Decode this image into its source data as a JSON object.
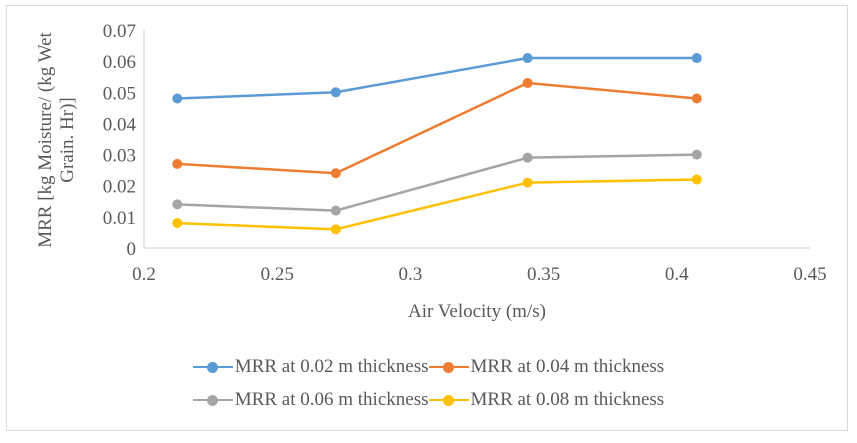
{
  "chart_data": {
    "type": "line",
    "title": "",
    "xlabel": "Air Velocity (m/s)",
    "ylabel": "MRR [kg Moisture/ (kg Wet Grain. Hr)]",
    "ylabel_lines": [
      "MRR [kg Moisture/ (kg Wet",
      "Grain. Hr)]"
    ],
    "xlim": [
      0.2,
      0.45
    ],
    "ylim": [
      0,
      0.07
    ],
    "x_ticks": [
      "0.2",
      "0.25",
      "0.3",
      "0.35",
      "0.4",
      "0.45"
    ],
    "x_tick_values": [
      0.2,
      0.25,
      0.3,
      0.35,
      0.4,
      0.45
    ],
    "y_ticks": [
      "0",
      "0.01",
      "0.02",
      "0.03",
      "0.04",
      "0.05",
      "0.06",
      "0.07"
    ],
    "y_tick_values": [
      0,
      0.01,
      0.02,
      0.03,
      0.04,
      0.05,
      0.06,
      0.07
    ],
    "grid": false,
    "legend_position": "bottom",
    "x": [
      0.2125,
      0.272,
      0.344,
      0.4075
    ],
    "series": [
      {
        "name": "MRR at 0.02 m thickness",
        "color": "#5b9bd5",
        "values": [
          0.048,
          0.05,
          0.061,
          0.061
        ]
      },
      {
        "name": "MRR at 0.04 m thickness",
        "color": "#ed7d31",
        "values": [
          0.027,
          0.024,
          0.053,
          0.048
        ]
      },
      {
        "name": "MRR at 0.06 m thickness",
        "color": "#a5a5a5",
        "values": [
          0.014,
          0.012,
          0.029,
          0.03
        ]
      },
      {
        "name": "MRR at 0.08 m thickness",
        "color": "#ffc000",
        "values": [
          0.008,
          0.006,
          0.021,
          0.022
        ]
      }
    ]
  }
}
